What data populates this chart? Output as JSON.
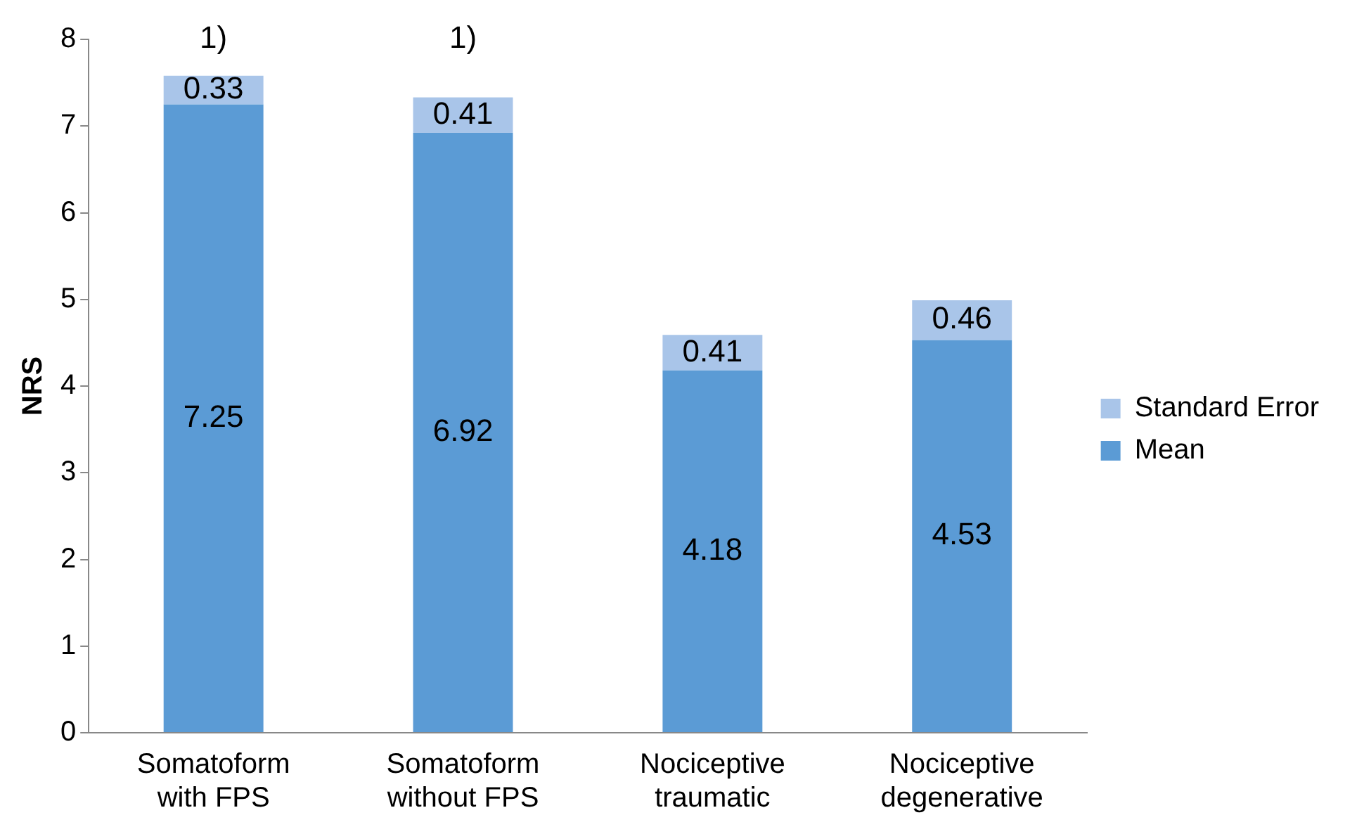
{
  "chart_data": {
    "type": "bar",
    "stacked": true,
    "ylabel": "NRS",
    "categories": [
      "Somatoform with FPS",
      "Somatoform without FPS",
      "Nociceptive traumatic",
      "Nociceptive degenerative"
    ],
    "series": [
      {
        "name": "Mean",
        "color": "#5b9bd5",
        "values": [
          7.25,
          6.92,
          4.18,
          4.53
        ]
      },
      {
        "name": "Standard Error",
        "color": "#a9c5e9",
        "values": [
          0.33,
          0.41,
          0.41,
          0.46
        ]
      }
    ],
    "ylim": [
      0,
      8
    ],
    "yticks": [
      0,
      1,
      2,
      3,
      4,
      5,
      6,
      7,
      8
    ],
    "grid": false,
    "legend": "right",
    "data_labels": true,
    "annotations": [
      "1)",
      "1)"
    ]
  }
}
